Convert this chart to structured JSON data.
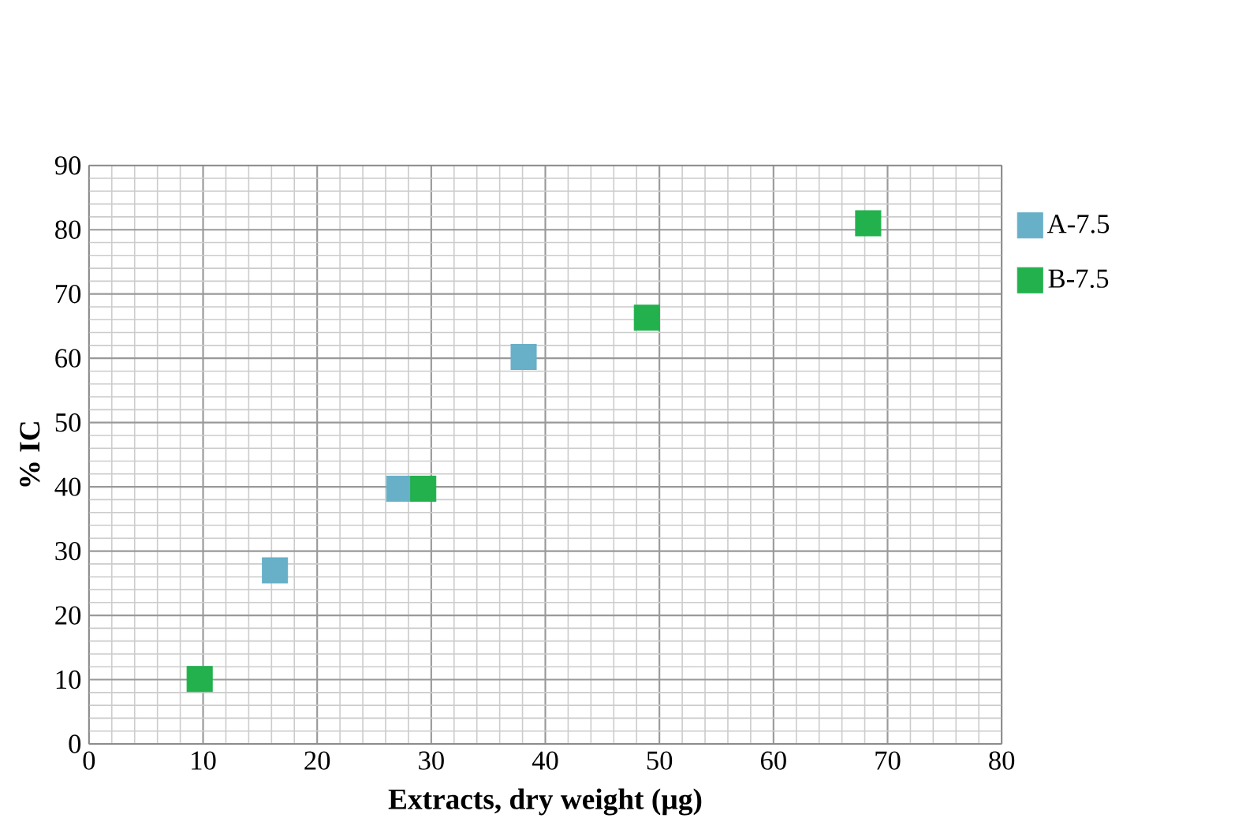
{
  "chart_data": {
    "type": "scatter",
    "xlabel": "Extracts, dry weight (µg)",
    "ylabel": "% IC",
    "series": [
      {
        "name": "A-7.5",
        "color": "#67b0c8",
        "x": [
          16.3,
          27.2,
          38.1
        ],
        "values": [
          27.0,
          39.7,
          60.2
        ]
      },
      {
        "name": "B-7.5",
        "color": "#22b14c",
        "x": [
          9.7,
          29.3,
          48.9,
          68.3
        ],
        "values": [
          10.1,
          39.7,
          66.3,
          81.0
        ]
      }
    ],
    "xlim": [
      0,
      80
    ],
    "ylim": [
      0,
      90
    ],
    "xticks": [
      0,
      10,
      20,
      30,
      40,
      50,
      60,
      70,
      80
    ],
    "yticks": [
      0,
      10,
      20,
      30,
      40,
      50,
      60,
      70,
      80,
      90
    ],
    "grid": true,
    "legend": "right",
    "marker": "square"
  }
}
